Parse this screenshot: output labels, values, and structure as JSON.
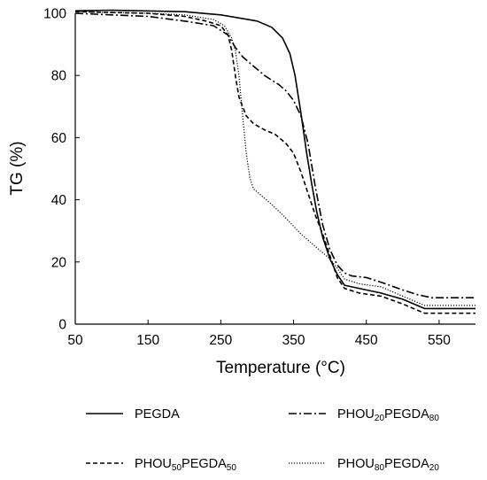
{
  "chart_data": {
    "type": "line",
    "xlabel": "Temperature (°C)",
    "ylabel": "TG (%)",
    "xlim": [
      50,
      600
    ],
    "ylim": [
      0,
      100
    ],
    "xticks": [
      50,
      150,
      250,
      350,
      450,
      550
    ],
    "yticks": [
      0,
      20,
      40,
      60,
      80,
      100
    ],
    "grid": false,
    "legend_position": "bottom",
    "series": [
      {
        "name": "PEGDA",
        "name_parts": [
          {
            "t": "PEGDA",
            "sub": false
          }
        ],
        "dash": "solid",
        "points": [
          [
            50,
            100.8
          ],
          [
            100,
            101
          ],
          [
            200,
            100.5
          ],
          [
            250,
            99.5
          ],
          [
            300,
            97.5
          ],
          [
            320,
            95.5
          ],
          [
            335,
            92
          ],
          [
            345,
            87
          ],
          [
            352,
            80
          ],
          [
            360,
            68
          ],
          [
            368,
            55
          ],
          [
            375,
            45
          ],
          [
            382,
            36
          ],
          [
            390,
            28
          ],
          [
            400,
            21
          ],
          [
            410,
            16
          ],
          [
            420,
            12.5
          ],
          [
            440,
            11.5
          ],
          [
            470,
            10
          ],
          [
            500,
            8
          ],
          [
            530,
            5
          ],
          [
            550,
            5
          ],
          [
            580,
            5
          ],
          [
            600,
            5
          ]
        ]
      },
      {
        "name": "PHOU20PEGDA80",
        "name_parts": [
          {
            "t": "PHOU",
            "sub": false
          },
          {
            "t": "20",
            "sub": true
          },
          {
            "t": "PEGDA",
            "sub": false
          },
          {
            "t": "80",
            "sub": true
          }
        ],
        "dash": "dashdot",
        "points": [
          [
            50,
            100
          ],
          [
            100,
            99.5
          ],
          [
            150,
            99
          ],
          [
            200,
            97.5
          ],
          [
            240,
            96
          ],
          [
            260,
            93
          ],
          [
            270,
            89
          ],
          [
            280,
            86
          ],
          [
            290,
            84
          ],
          [
            310,
            80
          ],
          [
            330,
            77
          ],
          [
            340,
            75
          ],
          [
            350,
            72
          ],
          [
            360,
            67
          ],
          [
            370,
            58
          ],
          [
            380,
            44
          ],
          [
            390,
            32
          ],
          [
            400,
            24
          ],
          [
            410,
            19
          ],
          [
            420,
            16.5
          ],
          [
            430,
            15.5
          ],
          [
            450,
            15
          ],
          [
            470,
            13.5
          ],
          [
            500,
            11
          ],
          [
            520,
            9.5
          ],
          [
            540,
            8.5
          ],
          [
            570,
            8.5
          ],
          [
            600,
            8.5
          ]
        ]
      },
      {
        "name": "PHOU50PEGDA50",
        "name_parts": [
          {
            "t": "PHOU",
            "sub": false
          },
          {
            "t": "50",
            "sub": true
          },
          {
            "t": "PEGDA",
            "sub": false
          },
          {
            "t": "50",
            "sub": true
          }
        ],
        "dash": "dashed",
        "points": [
          [
            50,
            100.5
          ],
          [
            150,
            100
          ],
          [
            200,
            99
          ],
          [
            230,
            97.5
          ],
          [
            250,
            96
          ],
          [
            260,
            93
          ],
          [
            265,
            88
          ],
          [
            270,
            80
          ],
          [
            275,
            73
          ],
          [
            285,
            67
          ],
          [
            295,
            64.5
          ],
          [
            310,
            62.5
          ],
          [
            325,
            61
          ],
          [
            340,
            58
          ],
          [
            350,
            55
          ],
          [
            360,
            49
          ],
          [
            370,
            42
          ],
          [
            380,
            35
          ],
          [
            390,
            29
          ],
          [
            400,
            22
          ],
          [
            410,
            15
          ],
          [
            420,
            11.5
          ],
          [
            440,
            10
          ],
          [
            470,
            9
          ],
          [
            500,
            6.5
          ],
          [
            530,
            3.5
          ],
          [
            560,
            3.5
          ],
          [
            600,
            3.5
          ]
        ]
      },
      {
        "name": "PHOU80PEGDA20",
        "name_parts": [
          {
            "t": "PHOU",
            "sub": false
          },
          {
            "t": "80",
            "sub": true
          },
          {
            "t": "PEGDA",
            "sub": false
          },
          {
            "t": "20",
            "sub": true
          }
        ],
        "dash": "dotted",
        "points": [
          [
            50,
            100.5
          ],
          [
            150,
            100
          ],
          [
            200,
            99.5
          ],
          [
            240,
            98
          ],
          [
            255,
            96
          ],
          [
            265,
            92
          ],
          [
            270,
            88
          ],
          [
            275,
            80
          ],
          [
            280,
            67
          ],
          [
            285,
            55
          ],
          [
            290,
            47
          ],
          [
            295,
            43.5
          ],
          [
            305,
            41.5
          ],
          [
            320,
            38.5
          ],
          [
            340,
            34
          ],
          [
            360,
            29
          ],
          [
            380,
            25
          ],
          [
            400,
            21
          ],
          [
            410,
            18
          ],
          [
            420,
            14.5
          ],
          [
            440,
            13
          ],
          [
            470,
            12
          ],
          [
            500,
            9
          ],
          [
            530,
            6
          ],
          [
            560,
            6
          ],
          [
            600,
            6
          ]
        ]
      }
    ]
  },
  "colors": {
    "line": "#000000",
    "axis": "#000000",
    "background": "#ffffff"
  }
}
